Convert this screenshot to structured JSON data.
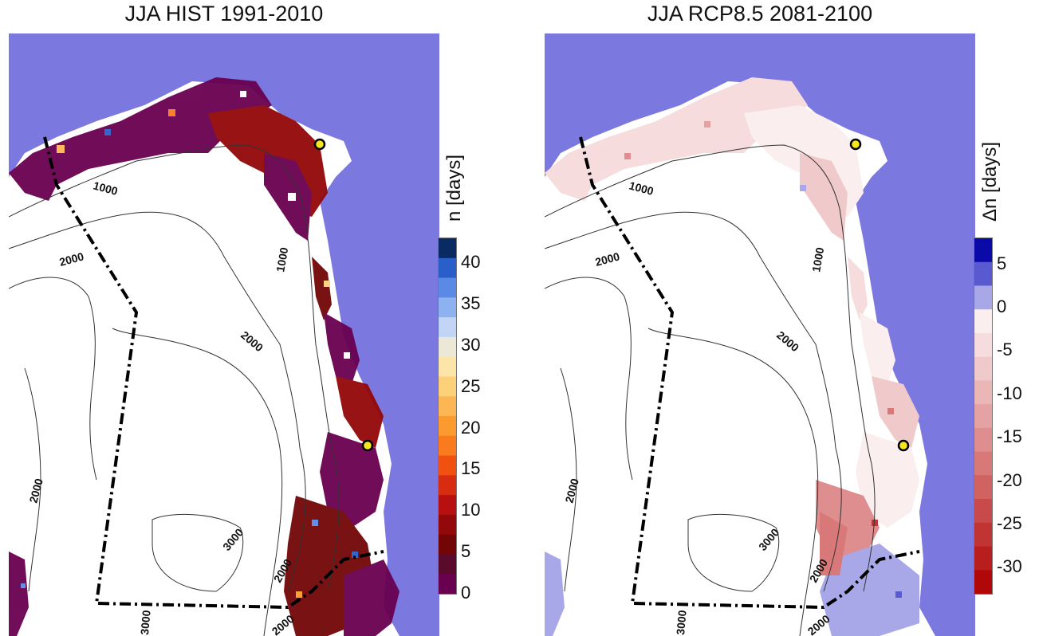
{
  "panels": [
    {
      "title": "JJA HIST 1991-2010",
      "colorbar": {
        "label": "n [days]",
        "ticks": [
          "40",
          "35",
          "30",
          "25",
          "20",
          "15",
          "10",
          "5",
          "0"
        ],
        "range": [
          0,
          43
        ],
        "colors": [
          "#0a2a63",
          "#2a5fc9",
          "#5a8ae6",
          "#8eb2f0",
          "#c2d5f7",
          "#ece8d8",
          "#fce5a8",
          "#fdd07a",
          "#fcb654",
          "#fb9a2e",
          "#fa7a1e",
          "#f05010",
          "#d82c10",
          "#b81010",
          "#930808",
          "#720606",
          "#5a0a2a",
          "#6a0050"
        ]
      },
      "contour_labels": [
        "1000",
        "1000",
        "2000",
        "2000",
        "2000",
        "3000",
        "2000",
        "3000",
        "2000"
      ]
    },
    {
      "title": "JJA RCP8.5 2081-2100",
      "colorbar": {
        "label": "Δn [days]",
        "ticks": [
          "5",
          "0",
          "-5",
          "-10",
          "-15",
          "-20",
          "-25",
          "-30"
        ],
        "range": [
          -33,
          8
        ],
        "colors": [
          "#0a0aa8",
          "#5a5ad0",
          "#a8a8e8",
          "#fbeeee",
          "#f6dcdc",
          "#f0caca",
          "#eab6b6",
          "#e4a2a2",
          "#de8e8e",
          "#d87878",
          "#d06262",
          "#c84a4a",
          "#c03434",
          "#b81e1e",
          "#b00808"
        ]
      },
      "contour_labels": [
        "1000",
        "1000",
        "2000",
        "2000",
        "2000",
        "3000",
        "2000",
        "3000",
        "2000"
      ]
    }
  ],
  "colors": {
    "ocean": "#7b78e0",
    "ice": "#ffffff",
    "basin_line": "#000000",
    "marker": "#f5e61e"
  }
}
